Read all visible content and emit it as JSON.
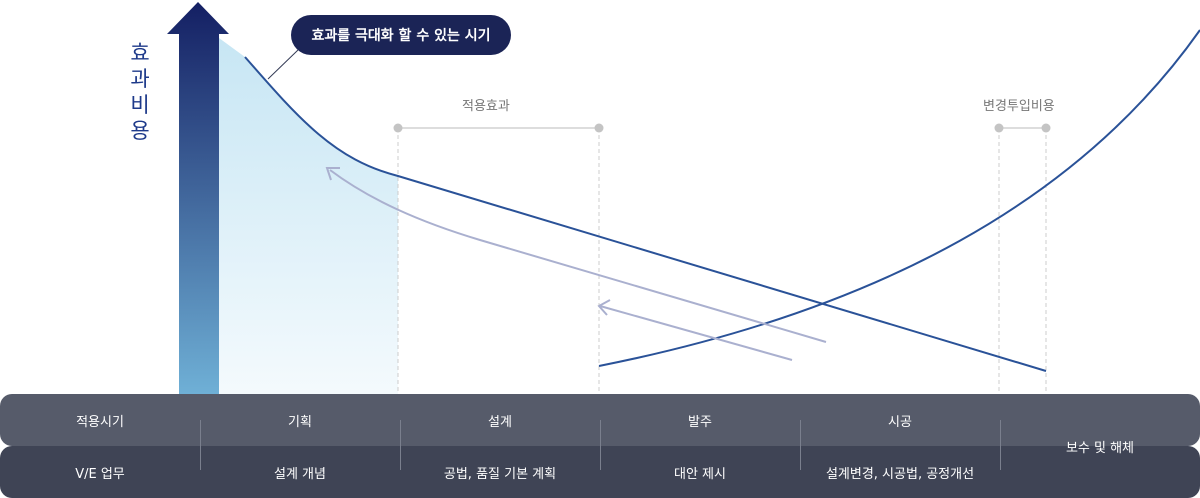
{
  "y_axis_label": [
    "효",
    "과",
    "비",
    "용"
  ],
  "callout": "효과를 극대화 할 수 있는 시기",
  "annotations": {
    "effect": "적용효과",
    "cost": "변경투입비용"
  },
  "table": {
    "row1_header": "적용시기",
    "row2_header": "V/E 업무",
    "phases": [
      "기획",
      "설계",
      "발주",
      "시공"
    ],
    "tasks": [
      "설계 개념",
      "공법, 품질 기본 계획",
      "대안 제시",
      "설계변경, 시공법, 공정개선"
    ],
    "last_phase": "보수 및 해체"
  },
  "colors": {
    "curve": "#2a5298",
    "arrow_top": "#141f63",
    "arrow_bottom": "#6fb0d6",
    "highlight": "#cde9f5",
    "feedback_arrow": "#aab0cf",
    "row1_bg": "#565b6a",
    "row2_bg": "#3f4455",
    "callout_bg": "#1b2456"
  }
}
